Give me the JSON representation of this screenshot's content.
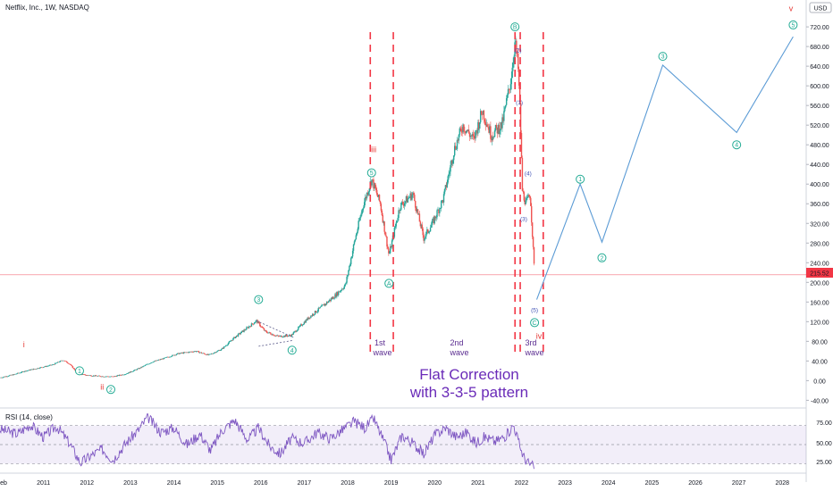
{
  "header": {
    "title": "Netflix, Inc., 1W, NASDAQ",
    "currency": "USD",
    "last_price_label": "215.52",
    "last_price": 215.52,
    "colors": {
      "last_price": "#f23645",
      "up": "#26a69a",
      "down": "#ef5350",
      "projection": "#5b9bd5",
      "rsi": "#7e57c2",
      "marker": "#22ab94"
    }
  },
  "rsi_panel": {
    "label": "RSI (14, close)",
    "levels": [
      75,
      50,
      25
    ],
    "level_labels": [
      "75.00",
      "50.00",
      "25.00"
    ]
  },
  "annotations": {
    "correction_title": "Flat Correction",
    "correction_subtitle": "with 3-3-5 pattern",
    "waves": [
      {
        "line1": "1st",
        "line2": "wave"
      },
      {
        "line1": "2nd",
        "line2": "wave"
      },
      {
        "line1": "3rd",
        "line2": "wave"
      }
    ],
    "wave_markers": [
      {
        "label": "1",
        "kind": "circle-green",
        "t": 2011.83,
        "v": 20
      },
      {
        "label": "2",
        "kind": "circle-green",
        "t": 2012.55,
        "v": -18
      },
      {
        "label": "3",
        "kind": "circle-green",
        "t": 2015.95,
        "v": 165
      },
      {
        "label": "4",
        "kind": "circle-green",
        "t": 2016.72,
        "v": 62
      },
      {
        "label": "5",
        "kind": "circle-green",
        "t": 2018.55,
        "v": 423
      },
      {
        "label": "A",
        "kind": "circle-green",
        "t": 2018.95,
        "v": 198
      },
      {
        "label": "B",
        "kind": "circle-green",
        "t": 2021.85,
        "v": 720
      },
      {
        "label": "C",
        "kind": "circle-green",
        "t": 2022.3,
        "v": 118
      },
      {
        "label": "1",
        "kind": "circle-green",
        "t": 2023.35,
        "v": 410
      },
      {
        "label": "2",
        "kind": "circle-green",
        "t": 2023.85,
        "v": 250
      },
      {
        "label": "3",
        "kind": "circle-green",
        "t": 2025.25,
        "v": 660
      },
      {
        "label": "4",
        "kind": "circle-green",
        "t": 2026.95,
        "v": 480
      },
      {
        "label": "5",
        "kind": "circle-green",
        "t": 2028.25,
        "v": 724
      },
      {
        "label": "(2)",
        "kind": "small-blue",
        "t": 2021.92,
        "v": 668
      },
      {
        "label": "(1)",
        "kind": "small-blue",
        "t": 2021.95,
        "v": 562
      },
      {
        "label": "(4)",
        "kind": "small-blue",
        "t": 2022.15,
        "v": 418
      },
      {
        "label": "(3)",
        "kind": "small-blue",
        "t": 2022.05,
        "v": 325
      },
      {
        "label": "(5)",
        "kind": "small-blue",
        "t": 2022.3,
        "v": 140
      },
      {
        "label": "i",
        "kind": "roman-red",
        "t": 2010.55,
        "v": 68
      },
      {
        "label": "ii",
        "kind": "roman-red",
        "t": 2012.35,
        "v": -18
      },
      {
        "label": "iii",
        "kind": "roman-red",
        "t": 2018.6,
        "v": 465
      },
      {
        "label": "iv",
        "kind": "roman-red",
        "t": 2022.4,
        "v": 85
      },
      {
        "label": "v",
        "kind": "roman-red",
        "t": 2028.2,
        "v": 752
      }
    ]
  },
  "chart_data": {
    "type": "line",
    "title": "Netflix, Inc., 1W, NASDAQ",
    "xlabel": "",
    "ylabel": "",
    "x_ticks": [
      "eb",
      "2011",
      "2012",
      "2013",
      "2014",
      "2015",
      "2016",
      "2017",
      "2018",
      "2019",
      "2020",
      "2021",
      "2022",
      "2023",
      "2024",
      "2025",
      "2026",
      "2027",
      "2028"
    ],
    "y_ticks": [
      "720.00",
      "680.00",
      "640.00",
      "600.00",
      "560.00",
      "520.00",
      "480.00",
      "440.00",
      "400.00",
      "360.00",
      "320.00",
      "280.00",
      "240.00",
      "200.00",
      "160.00",
      "120.00",
      "80.00",
      "40.00",
      "0.00",
      "-40.00"
    ],
    "xlim": [
      2010.0,
      2028.55
    ],
    "ylim": [
      -52,
      742
    ],
    "grid": false,
    "price_path": [
      [
        2010.0,
        6
      ],
      [
        2010.3,
        12
      ],
      [
        2010.6,
        20
      ],
      [
        2010.9,
        26
      ],
      [
        2011.2,
        32
      ],
      [
        2011.45,
        42
      ],
      [
        2011.6,
        34
      ],
      [
        2011.8,
        14
      ],
      [
        2012.0,
        11
      ],
      [
        2012.3,
        9
      ],
      [
        2012.6,
        8
      ],
      [
        2012.9,
        14
      ],
      [
        2013.2,
        25
      ],
      [
        2013.5,
        38
      ],
      [
        2013.8,
        46
      ],
      [
        2014.1,
        55
      ],
      [
        2014.5,
        60
      ],
      [
        2014.8,
        52
      ],
      [
        2015.1,
        64
      ],
      [
        2015.4,
        88
      ],
      [
        2015.7,
        108
      ],
      [
        2015.9,
        122
      ],
      [
        2016.1,
        100
      ],
      [
        2016.4,
        90
      ],
      [
        2016.7,
        92
      ],
      [
        2016.9,
        110
      ],
      [
        2017.1,
        128
      ],
      [
        2017.4,
        150
      ],
      [
        2017.7,
        172
      ],
      [
        2017.95,
        195
      ],
      [
        2018.15,
        280
      ],
      [
        2018.35,
        355
      ],
      [
        2018.55,
        410
      ],
      [
        2018.75,
        360
      ],
      [
        2018.95,
        255
      ],
      [
        2019.2,
        355
      ],
      [
        2019.5,
        380
      ],
      [
        2019.75,
        290
      ],
      [
        2019.95,
        320
      ],
      [
        2020.2,
        370
      ],
      [
        2020.45,
        470
      ],
      [
        2020.65,
        520
      ],
      [
        2020.9,
        490
      ],
      [
        2021.1,
        550
      ],
      [
        2021.3,
        500
      ],
      [
        2021.55,
        520
      ],
      [
        2021.75,
        610
      ],
      [
        2021.85,
        690
      ],
      [
        2021.92,
        640
      ],
      [
        2021.97,
        540
      ],
      [
        2022.02,
        385
      ],
      [
        2022.1,
        360
      ],
      [
        2022.2,
        380
      ],
      [
        2022.3,
        215.52
      ]
    ],
    "projection": [
      [
        2022.35,
        165
      ],
      [
        2023.35,
        400
      ],
      [
        2023.85,
        282
      ],
      [
        2025.25,
        642
      ],
      [
        2026.95,
        505
      ],
      [
        2028.25,
        700
      ]
    ],
    "wave_boundaries": [
      2018.52,
      2019.05,
      2021.85,
      2021.97,
      2022.5
    ],
    "rsi": {
      "ylim": [
        15,
        92
      ],
      "points": [
        [
          2010.0,
          70
        ],
        [
          2010.4,
          64
        ],
        [
          2010.7,
          76
        ],
        [
          2011.0,
          60
        ],
        [
          2011.3,
          74
        ],
        [
          2011.6,
          52
        ],
        [
          2011.85,
          26
        ],
        [
          2012.1,
          36
        ],
        [
          2012.35,
          44
        ],
        [
          2012.6,
          30
        ],
        [
          2012.9,
          52
        ],
        [
          2013.2,
          70
        ],
        [
          2013.4,
          86
        ],
        [
          2013.7,
          66
        ],
        [
          2014.0,
          72
        ],
        [
          2014.3,
          50
        ],
        [
          2014.6,
          64
        ],
        [
          2014.85,
          42
        ],
        [
          2015.1,
          68
        ],
        [
          2015.4,
          82
        ],
        [
          2015.7,
          56
        ],
        [
          2015.95,
          72
        ],
        [
          2016.2,
          48
        ],
        [
          2016.45,
          38
        ],
        [
          2016.7,
          58
        ],
        [
          2017.0,
          52
        ],
        [
          2017.3,
          66
        ],
        [
          2017.6,
          58
        ],
        [
          2017.9,
          70
        ],
        [
          2018.15,
          80
        ],
        [
          2018.4,
          72
        ],
        [
          2018.6,
          84
        ],
        [
          2018.85,
          52
        ],
        [
          2019.0,
          30
        ],
        [
          2019.25,
          62
        ],
        [
          2019.5,
          52
        ],
        [
          2019.75,
          38
        ],
        [
          2020.0,
          62
        ],
        [
          2020.25,
          72
        ],
        [
          2020.5,
          60
        ],
        [
          2020.75,
          66
        ],
        [
          2020.95,
          52
        ],
        [
          2021.15,
          60
        ],
        [
          2021.4,
          54
        ],
        [
          2021.65,
          62
        ],
        [
          2021.82,
          76
        ],
        [
          2021.95,
          50
        ],
        [
          2022.05,
          34
        ],
        [
          2022.15,
          26
        ],
        [
          2022.3,
          20
        ]
      ]
    }
  }
}
